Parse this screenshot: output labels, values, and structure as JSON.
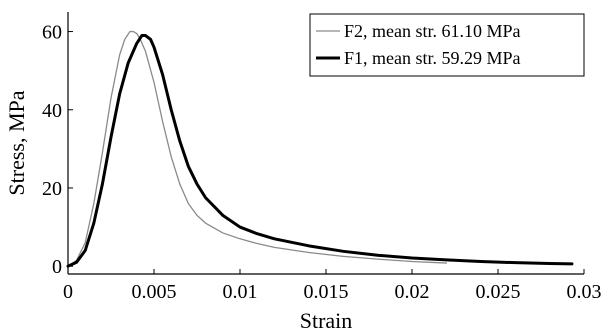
{
  "chart_data": {
    "type": "line",
    "title": "",
    "xlabel": "Strain",
    "ylabel": "Stress, MPa",
    "xlim": [
      0,
      0.03
    ],
    "ylim": [
      -2,
      65
    ],
    "xticks": [
      0,
      0.005,
      0.01,
      0.015,
      0.02,
      0.025,
      0.03
    ],
    "xtick_labels": [
      "0",
      "0.005",
      "0.01",
      "0.015",
      "0.02",
      "0.025",
      "0.03"
    ],
    "yticks": [
      0,
      20,
      40,
      60
    ],
    "ytick_labels": [
      "0",
      "20",
      "40",
      "60"
    ],
    "grid": false,
    "legend_position": "top-right",
    "series": [
      {
        "name": "F2, mean str. 61.10 MPa",
        "color": "#8a8a8a",
        "line": "thin",
        "x": [
          0,
          0.0005,
          0.001,
          0.0015,
          0.002,
          0.0025,
          0.003,
          0.0033,
          0.0036,
          0.0038,
          0.004,
          0.0042,
          0.0045,
          0.005,
          0.0055,
          0.006,
          0.0065,
          0.007,
          0.0075,
          0.008,
          0.009,
          0.01,
          0.011,
          0.012,
          0.014,
          0.016,
          0.018,
          0.02,
          0.022
        ],
        "y": [
          0,
          1.5,
          6,
          16,
          29,
          43,
          54,
          58,
          60,
          60,
          59.5,
          58,
          55,
          47,
          37,
          28,
          21,
          16,
          13,
          11,
          8.5,
          7,
          5.8,
          4.8,
          3.5,
          2.5,
          1.8,
          1.2,
          0.8
        ]
      },
      {
        "name": "F1, mean str. 59.29 MPa",
        "color": "#000000",
        "line": "thick",
        "x": [
          0,
          0.0005,
          0.001,
          0.0015,
          0.002,
          0.0025,
          0.003,
          0.0035,
          0.004,
          0.0043,
          0.0045,
          0.0048,
          0.005,
          0.0055,
          0.006,
          0.0065,
          0.007,
          0.0075,
          0.008,
          0.009,
          0.01,
          0.011,
          0.012,
          0.014,
          0.016,
          0.018,
          0.02,
          0.022,
          0.024,
          0.026,
          0.028,
          0.0293
        ],
        "y": [
          0,
          1,
          4,
          11,
          21,
          33,
          44,
          52,
          57,
          59,
          59,
          58,
          56,
          49,
          40,
          32,
          25.5,
          21,
          17.5,
          13,
          10,
          8.3,
          7,
          5.2,
          3.8,
          2.8,
          2.1,
          1.6,
          1.2,
          0.9,
          0.7,
          0.6
        ]
      }
    ]
  }
}
